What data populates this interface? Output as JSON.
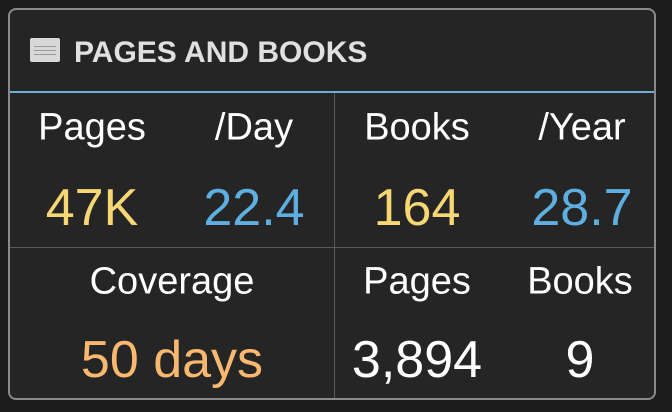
{
  "header": {
    "title": "PAGES AND BOOKS"
  },
  "cells": [
    {
      "labels": [
        "Pages",
        "/Day"
      ],
      "values": [
        "47K",
        "22.4"
      ]
    },
    {
      "labels": [
        "Books",
        "/Year"
      ],
      "values": [
        "164",
        "28.7"
      ]
    },
    {
      "labels": [
        "Coverage"
      ],
      "values": [
        "50 days"
      ]
    },
    {
      "labels": [
        "Pages",
        "Books"
      ],
      "values": [
        "3,894",
        "9"
      ]
    }
  ]
}
